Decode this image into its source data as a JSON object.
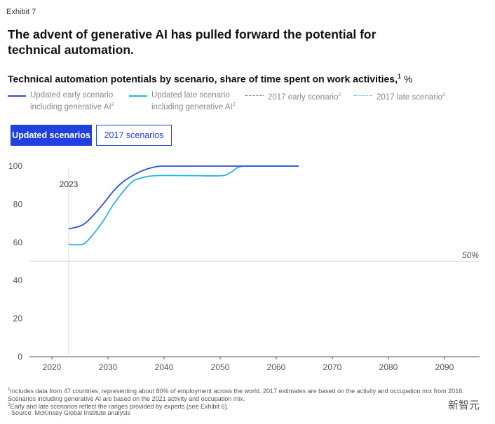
{
  "exhibit": "Exhibit 7",
  "title": "The advent of generative AI has pulled forward the potential for technical automation.",
  "subtitle": "Technical automation potentials by scenario, share of time spent on work activities,",
  "subtitle_sup": "1",
  "subtitle_unit": "%",
  "legend": [
    {
      "line1": "Updated early scenario",
      "line2": "including generative AI",
      "sup": "2",
      "style": "solid",
      "color": "#2d4ee0"
    },
    {
      "line1": "Updated late scenario",
      "line2": "including generative AI",
      "sup": "2",
      "style": "solid",
      "color": "#22b5e8"
    },
    {
      "line1": "2017 early scenario",
      "line2": "",
      "sup": "2",
      "style": "dotted",
      "color": "#2d4ee0"
    },
    {
      "line1": "2017 late scenario",
      "line2": "",
      "sup": "2",
      "style": "dotted",
      "color": "#22b5e8"
    }
  ],
  "toggle": {
    "active": "Updated scenarios",
    "inactive": "2017 scenarios"
  },
  "chart_data": {
    "type": "line",
    "title": "Technical automation potentials by scenario, share of time spent on work activities, %",
    "xlim": [
      2017,
      2096
    ],
    "ylim": [
      0,
      100
    ],
    "xticks": [
      2020,
      2030,
      2040,
      2050,
      2060,
      2070,
      2080,
      2090
    ],
    "yticks": [
      0,
      20,
      40,
      60,
      80,
      100
    ],
    "reference_line": {
      "y": 50,
      "label": "50%"
    },
    "vertical_marker": {
      "x": 2023,
      "label": "2023"
    },
    "series": [
      {
        "name": "Updated early scenario including generative AI",
        "color": "#2d4ee0",
        "x": [
          2023,
          2025.4,
          2027,
          2029.1,
          2031,
          2032.8,
          2035,
          2037,
          2039.5,
          2045,
          2050,
          2055,
          2060,
          2064
        ],
        "y": [
          67,
          69,
          73,
          80,
          87,
          92,
          96,
          98.5,
          100,
          100,
          100,
          100,
          100,
          100
        ]
      },
      {
        "name": "Updated late scenario including generative AI",
        "color": "#22b5e8",
        "x": [
          2023,
          2025.5,
          2027,
          2029.1,
          2031,
          2034,
          2036,
          2038.6,
          2045,
          2050.4,
          2052,
          2054.1,
          2060,
          2064
        ],
        "y": [
          59,
          59,
          63,
          71,
          80,
          91,
          93.8,
          95,
          95,
          95,
          97,
          100,
          100,
          100
        ]
      }
    ]
  },
  "footnotes": [
    {
      "sup": "1",
      "text": "Includes data from 47 countries, representing about 80% of employment across the world. 2017 estimates are based on the activity and occupation mix from 2016. Scenarios including generative AI are based on the 2021 activity and occupation mix."
    },
    {
      "sup": "2",
      "text": "Early and late scenarios reflect the ranges provided by experts (see Exhibit 6)."
    },
    {
      "sup": "",
      "text": "Source: McKinsey Global Institute analysis"
    }
  ],
  "watermark": "新智元"
}
